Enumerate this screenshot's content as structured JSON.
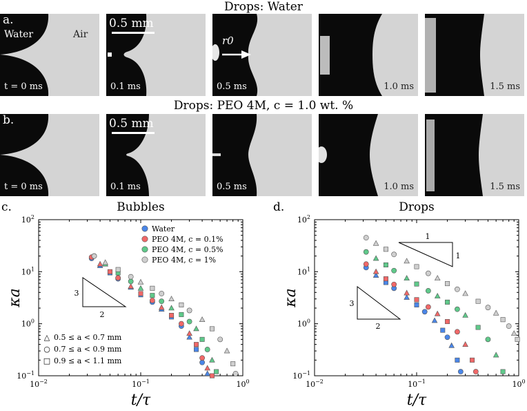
{
  "row_a": {
    "title": "Drops: Water",
    "letter": "a.",
    "frames": [
      {
        "time": "t = 0 ms",
        "extra1": "Water",
        "extra2": "Air"
      },
      {
        "time": "0.1 ms",
        "scale": "0.5 mm"
      },
      {
        "time": "0.5 ms",
        "annot": "r0"
      },
      {
        "time": "1.0 ms"
      },
      {
        "time": "1.5 ms"
      }
    ]
  },
  "row_b": {
    "title": "Drops: PEO 4M, c = 1.0 wt. %",
    "letter": "b.",
    "frames": [
      {
        "time": "t = 0 ms"
      },
      {
        "time": "0.1 ms",
        "scale": "0.5 mm"
      },
      {
        "time": "0.5 ms"
      },
      {
        "time": "1.0 ms"
      },
      {
        "time": "1.5 ms"
      }
    ]
  },
  "panel_c": {
    "letter": "c.",
    "title": "Bubbles"
  },
  "panel_d": {
    "letter": "d.",
    "title": "Drops"
  },
  "chart_data": [
    {
      "type": "scatter",
      "title": "Bubbles",
      "xlabel": "t/τ",
      "ylabel": "κa",
      "xscale": "log",
      "yscale": "log",
      "xlim": [
        0.01,
        1
      ],
      "ylim": [
        0.1,
        100
      ],
      "x_ticks": [
        "10^-2",
        "10^-1",
        "10^0"
      ],
      "y_ticks": [
        "10^-1",
        "10^0",
        "10^1",
        "10^2"
      ],
      "legend": {
        "placement": "top-right",
        "entries": [
          "Water",
          "PEO 4M, c = 0.1%",
          "PEO 4M, c = 0.5%",
          "PEO 4M, c = 1%"
        ]
      },
      "marker_legend": [
        "0.5 ≤ a < 0.7 mm",
        "0.7 ≤ a < 0.9 mm",
        "0.9 ≤ a < 1.1 mm"
      ],
      "slope_triangle": {
        "rise": "3",
        "run": "2"
      },
      "series": [
        {
          "name": "Water",
          "color": "#4a86e8",
          "x": [
            0.033,
            0.04,
            0.05,
            0.06,
            0.08,
            0.1,
            0.13,
            0.16,
            0.2,
            0.25,
            0.3,
            0.35,
            0.4,
            0.45
          ],
          "y": [
            18,
            13,
            9.5,
            7.3,
            5.0,
            3.6,
            2.6,
            1.9,
            1.35,
            0.9,
            0.55,
            0.32,
            0.18,
            0.11
          ]
        },
        {
          "name": "PEO 4M, c = 0.1%",
          "color": "#f06868",
          "x": [
            0.033,
            0.04,
            0.05,
            0.06,
            0.08,
            0.1,
            0.13,
            0.16,
            0.2,
            0.25,
            0.3,
            0.35,
            0.4,
            0.45,
            0.5
          ],
          "y": [
            19,
            14,
            10,
            7.6,
            5.2,
            3.8,
            2.8,
            2.05,
            1.45,
            1.0,
            0.65,
            0.4,
            0.22,
            0.14,
            0.1
          ]
        },
        {
          "name": "PEO 4M, c = 0.5%",
          "color": "#5fc98a",
          "x": [
            0.035,
            0.045,
            0.06,
            0.08,
            0.1,
            0.13,
            0.16,
            0.2,
            0.25,
            0.3,
            0.35,
            0.4,
            0.45,
            0.5,
            0.55
          ],
          "y": [
            20,
            14,
            9.5,
            6.5,
            4.8,
            3.5,
            2.7,
            2.0,
            1.5,
            1.1,
            0.8,
            0.5,
            0.32,
            0.2,
            0.12
          ]
        },
        {
          "name": "PEO 4M, c = 1%",
          "color": "#cfcfcf",
          "x": [
            0.035,
            0.045,
            0.06,
            0.08,
            0.1,
            0.13,
            0.16,
            0.2,
            0.25,
            0.3,
            0.4,
            0.5,
            0.6,
            0.7,
            0.8,
            0.85
          ],
          "y": [
            20,
            15,
            11,
            8,
            6.3,
            4.8,
            3.8,
            3.0,
            2.3,
            1.8,
            1.2,
            0.8,
            0.5,
            0.3,
            0.17,
            0.11
          ]
        }
      ]
    },
    {
      "type": "scatter",
      "title": "Drops",
      "xlabel": "t/τ",
      "ylabel": "κa",
      "xscale": "log",
      "yscale": "log",
      "xlim": [
        0.01,
        1
      ],
      "ylim": [
        0.1,
        100
      ],
      "x_ticks": [
        "10^-2",
        "10^-1",
        "10^0"
      ],
      "y_ticks": [
        "10^-1",
        "10^0",
        "10^1",
        "10^2"
      ],
      "slope_triangles": [
        {
          "rise": "1",
          "run": "1"
        },
        {
          "rise": "3",
          "run": "2"
        }
      ],
      "series": [
        {
          "name": "Water",
          "color": "#4a86e8",
          "x": [
            0.032,
            0.04,
            0.05,
            0.06,
            0.08,
            0.1,
            0.12,
            0.15,
            0.18,
            0.2,
            0.22,
            0.25,
            0.27
          ],
          "y": [
            12,
            8.5,
            6.2,
            4.8,
            3.2,
            2.3,
            1.7,
            1.15,
            0.75,
            0.55,
            0.38,
            0.2,
            0.12
          ]
        },
        {
          "name": "PEO 4M, c = 0.1%",
          "color": "#f06868",
          "x": [
            0.032,
            0.04,
            0.05,
            0.06,
            0.08,
            0.1,
            0.13,
            0.16,
            0.2,
            0.25,
            0.3,
            0.35,
            0.38
          ],
          "y": [
            14,
            10,
            7.3,
            5.7,
            3.9,
            2.9,
            2.1,
            1.55,
            1.1,
            0.7,
            0.4,
            0.2,
            0.12
          ]
        },
        {
          "name": "PEO 4M, c = 0.5%",
          "color": "#5fc98a",
          "x": [
            0.032,
            0.04,
            0.05,
            0.06,
            0.08,
            0.1,
            0.13,
            0.16,
            0.2,
            0.25,
            0.3,
            0.4,
            0.5,
            0.6,
            0.7
          ],
          "y": [
            24,
            18,
            13.5,
            10.5,
            7.5,
            5.8,
            4.3,
            3.4,
            2.6,
            1.9,
            1.45,
            0.85,
            0.5,
            0.25,
            0.12
          ]
        },
        {
          "name": "PEO 4M, c = 1%",
          "color": "#cfcfcf",
          "x": [
            0.032,
            0.04,
            0.05,
            0.06,
            0.08,
            0.1,
            0.13,
            0.16,
            0.2,
            0.25,
            0.3,
            0.4,
            0.5,
            0.6,
            0.7,
            0.8,
            0.9,
            0.97
          ],
          "y": [
            45,
            35,
            27,
            21.5,
            16,
            12.5,
            9.3,
            7.5,
            5.9,
            4.6,
            3.8,
            2.7,
            2.05,
            1.6,
            1.2,
            0.9,
            0.65,
            0.5
          ]
        }
      ]
    }
  ]
}
